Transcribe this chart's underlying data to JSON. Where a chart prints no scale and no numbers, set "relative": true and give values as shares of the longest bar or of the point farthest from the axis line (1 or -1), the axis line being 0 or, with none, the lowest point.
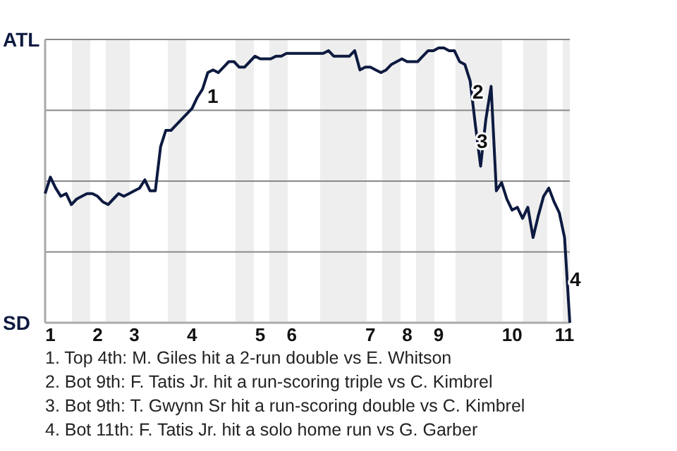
{
  "chart_data": {
    "type": "line",
    "relative": true,
    "grid": "y",
    "marker": "none",
    "line_style": "solid",
    "categories": [
      null,
      "1",
      null,
      null,
      null,
      null,
      null,
      null,
      null,
      null,
      "2",
      null,
      null,
      null,
      null,
      null,
      null,
      "3",
      null,
      null,
      null,
      null,
      null,
      null,
      null,
      null,
      null,
      null,
      "4",
      null,
      null,
      null,
      null,
      null,
      null,
      null,
      null,
      null,
      null,
      null,
      null,
      "5",
      null,
      null,
      null,
      null,
      null,
      "6",
      null,
      null,
      null,
      null,
      null,
      null,
      null,
      null,
      null,
      null,
      null,
      null,
      null,
      null,
      "7",
      null,
      null,
      null,
      null,
      null,
      null,
      "8",
      null,
      null,
      null,
      null,
      null,
      "9",
      null,
      null,
      null,
      null,
      null,
      null,
      null,
      null,
      null,
      null,
      null,
      null,
      null,
      "10",
      null,
      null,
      null,
      null,
      null,
      null,
      null,
      null,
      null,
      "11",
      null
    ],
    "series": [
      {
        "color": "#0d1a40",
        "values": [
          0.47,
          0.53,
          0.49,
          0.46,
          0.47,
          0.43,
          0.45,
          0.46,
          0.47,
          0.47,
          0.46,
          0.44,
          0.43,
          0.45,
          0.47,
          0.46,
          0.47,
          0.48,
          0.49,
          0.52,
          0.48,
          0.48,
          0.64,
          0.7,
          0.7,
          0.72,
          0.74,
          0.76,
          0.78,
          0.82,
          0.85,
          0.91,
          0.92,
          0.91,
          0.93,
          0.95,
          0.95,
          0.93,
          0.93,
          0.95,
          0.97,
          0.96,
          0.96,
          0.96,
          0.97,
          0.97,
          0.98,
          0.98,
          0.98,
          0.98,
          0.98,
          0.98,
          0.98,
          0.98,
          0.99,
          0.97,
          0.97,
          0.97,
          0.97,
          0.99,
          0.92,
          0.93,
          0.93,
          0.92,
          0.91,
          0.92,
          0.94,
          0.95,
          0.96,
          0.95,
          0.95,
          0.95,
          0.97,
          0.99,
          0.99,
          1,
          1,
          0.99,
          0.99,
          0.95,
          0.94,
          0.88,
          0.72,
          0.57,
          0.74,
          0.86,
          0.48,
          0.51,
          0.45,
          0.41,
          0.42,
          0.38,
          0.42,
          0.31,
          0.39,
          0.46,
          0.49,
          0.44,
          0.4,
          0.31,
          0
        ]
      }
    ],
    "annotations": [
      "ATL",
      "SD",
      "1",
      "2",
      "3",
      "4",
      "1. Top 4th: M. Giles hit a 2-run double vs E. Whitson",
      "2. Bot 9th: F. Tatis Jr. hit a run-scoring triple vs C. Kimbrel",
      "3. Bot 9th: T. Gwynn Sr hit a run-scoring double vs C. Kimbrel",
      "4. Bot 11th: F. Tatis Jr. hit a solo home run vs G. Garber"
    ]
  }
}
